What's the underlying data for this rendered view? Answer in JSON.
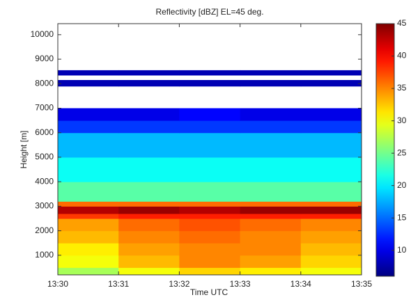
{
  "chart_data": {
    "type": "heatmap",
    "title": "Reflectivity [dBZ]   EL=45 deg.",
    "xlabel": "Time UTC",
    "ylabel": "Height [m]",
    "xlim": [
      810,
      815
    ],
    "xticks": [
      {
        "value": 810,
        "label": "13:30"
      },
      {
        "value": 811,
        "label": "13:31"
      },
      {
        "value": 812,
        "label": "13:32"
      },
      {
        "value": 813,
        "label": "13:33"
      },
      {
        "value": 814,
        "label": "13:34"
      },
      {
        "value": 815,
        "label": "13:35"
      }
    ],
    "ylim": [
      200,
      10450
    ],
    "yticks": [
      1000,
      2000,
      3000,
      4000,
      5000,
      6000,
      7000,
      8000,
      9000,
      10000
    ],
    "x_edges": [
      810,
      811,
      812,
      813,
      814,
      815
    ],
    "y_edges": [
      200,
      500,
      1000,
      1500,
      2000,
      2500,
      2700,
      3000,
      3200,
      4000,
      5000,
      6000,
      6500,
      7000,
      7900,
      8150,
      8350,
      8550,
      10450
    ],
    "z": [
      [
        27,
        30,
        32,
        31,
        30
      ],
      [
        30,
        33,
        35,
        34,
        32
      ],
      [
        31,
        34,
        35,
        35,
        33
      ],
      [
        33,
        35,
        36,
        35,
        34
      ],
      [
        34,
        36,
        37,
        36,
        35
      ],
      [
        38,
        39,
        39,
        39,
        39
      ],
      [
        43,
        44,
        43,
        44,
        44
      ],
      [
        36,
        36,
        36,
        36,
        36
      ],
      [
        24,
        24,
        24,
        24,
        24
      ],
      [
        21,
        21,
        21,
        21,
        21
      ],
      [
        18,
        18,
        18,
        18,
        18
      ],
      [
        13,
        13,
        13,
        13,
        13
      ],
      [
        10,
        10,
        11,
        10,
        10
      ],
      [
        null,
        null,
        null,
        null,
        null
      ],
      [
        8,
        8,
        8,
        8,
        8
      ],
      [
        null,
        null,
        null,
        null,
        null
      ],
      [
        8,
        8,
        8,
        8,
        8
      ],
      [
        null,
        null,
        null,
        null,
        null
      ]
    ],
    "colormap": "jet",
    "clim": [
      6,
      45
    ],
    "cticks": [
      10,
      15,
      20,
      25,
      30,
      35,
      40,
      45
    ]
  }
}
